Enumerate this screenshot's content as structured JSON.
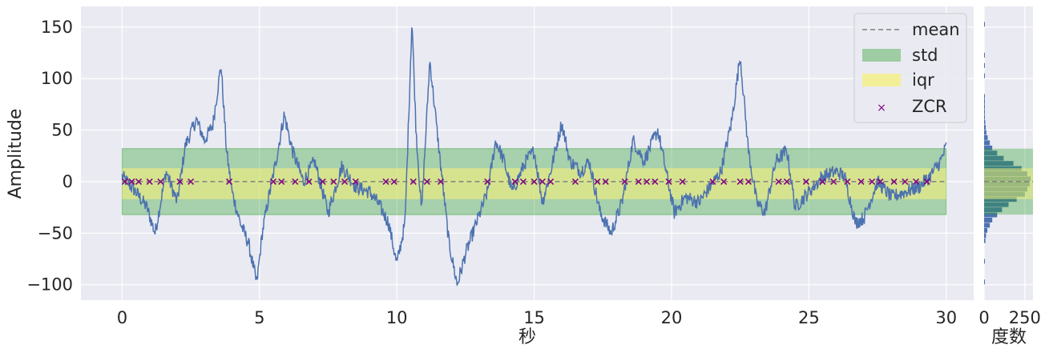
{
  "chart_data": [
    {
      "type": "line",
      "xlabel": "秒",
      "ylabel": "Amplitude",
      "xlim": [
        -1.5,
        31.0
      ],
      "ylim": [
        -115,
        170
      ],
      "xticks": [
        0,
        5,
        10,
        15,
        20,
        25,
        30
      ],
      "xtick_labels": [
        "0",
        "5",
        "10",
        "15",
        "20",
        "25",
        "30"
      ],
      "yticks": [
        -100,
        -50,
        0,
        50,
        100,
        150
      ],
      "ytick_labels": [
        "−100",
        "−50",
        "0",
        "50",
        "100",
        "150"
      ],
      "grid": true,
      "legend_position": "top-right",
      "legend": [
        "mean",
        "std",
        "iqr",
        "ZCR"
      ],
      "mean": 0,
      "std_band": [
        -32,
        32
      ],
      "iqr_band": [
        -17,
        13
      ],
      "x_range": [
        0,
        30
      ],
      "signal_keypoints": [
        [
          0.0,
          5
        ],
        [
          0.5,
          -10
        ],
        [
          0.9,
          -25
        ],
        [
          1.2,
          -50
        ],
        [
          1.6,
          10
        ],
        [
          2.0,
          -20
        ],
        [
          2.3,
          35
        ],
        [
          2.7,
          60
        ],
        [
          3.0,
          40
        ],
        [
          3.3,
          55
        ],
        [
          3.6,
          113
        ],
        [
          3.8,
          30
        ],
        [
          4.0,
          -10
        ],
        [
          4.3,
          -40
        ],
        [
          4.6,
          -60
        ],
        [
          4.9,
          -99
        ],
        [
          5.1,
          -50
        ],
        [
          5.3,
          -20
        ],
        [
          5.6,
          20
        ],
        [
          5.9,
          65
        ],
        [
          6.2,
          30
        ],
        [
          6.6,
          0
        ],
        [
          7.0,
          20
        ],
        [
          7.5,
          -30
        ],
        [
          8.0,
          15
        ],
        [
          8.5,
          -5
        ],
        [
          9.0,
          -10
        ],
        [
          9.3,
          -20
        ],
        [
          9.7,
          -40
        ],
        [
          10.0,
          -80
        ],
        [
          10.3,
          -40
        ],
        [
          10.55,
          157
        ],
        [
          10.7,
          50
        ],
        [
          10.9,
          -30
        ],
        [
          11.2,
          118
        ],
        [
          11.5,
          40
        ],
        [
          11.9,
          -60
        ],
        [
          12.2,
          -100
        ],
        [
          12.5,
          -70
        ],
        [
          12.9,
          -40
        ],
        [
          13.3,
          -10
        ],
        [
          13.6,
          40
        ],
        [
          13.9,
          20
        ],
        [
          14.2,
          -10
        ],
        [
          14.7,
          20
        ],
        [
          15.0,
          30
        ],
        [
          15.3,
          -20
        ],
        [
          15.6,
          10
        ],
        [
          16.0,
          57
        ],
        [
          16.3,
          20
        ],
        [
          16.7,
          10
        ],
        [
          17.0,
          20
        ],
        [
          17.4,
          -30
        ],
        [
          17.8,
          -50
        ],
        [
          18.2,
          -20
        ],
        [
          18.6,
          40
        ],
        [
          19.0,
          20
        ],
        [
          19.5,
          50
        ],
        [
          19.8,
          10
        ],
        [
          20.1,
          -30
        ],
        [
          20.5,
          -15
        ],
        [
          21.0,
          -20
        ],
        [
          21.4,
          -5
        ],
        [
          21.8,
          10
        ],
        [
          22.2,
          60
        ],
        [
          22.5,
          122
        ],
        [
          22.8,
          30
        ],
        [
          23.1,
          -20
        ],
        [
          23.4,
          -30
        ],
        [
          23.8,
          20
        ],
        [
          24.2,
          30
        ],
        [
          24.5,
          -25
        ],
        [
          25.0,
          -10
        ],
        [
          25.5,
          5
        ],
        [
          26.0,
          10
        ],
        [
          26.3,
          5
        ],
        [
          26.7,
          -40
        ],
        [
          27.0,
          -35
        ],
        [
          27.5,
          0
        ],
        [
          28.0,
          -15
        ],
        [
          28.5,
          -10
        ],
        [
          29.0,
          -5
        ],
        [
          29.4,
          5
        ],
        [
          29.8,
          20
        ],
        [
          30.0,
          34
        ]
      ],
      "zcr_x": [
        0.1,
        0.35,
        0.6,
        1.0,
        1.4,
        2.1,
        2.5,
        3.9,
        5.5,
        5.8,
        6.3,
        6.8,
        7.3,
        7.7,
        8.1,
        8.5,
        9.6,
        9.9,
        10.6,
        11.1,
        11.6,
        13.3,
        14.3,
        14.6,
        15.0,
        15.3,
        15.6,
        16.5,
        17.3,
        17.6,
        18.3,
        18.8,
        19.1,
        19.4,
        19.9,
        20.4,
        21.5,
        21.9,
        22.5,
        22.8,
        23.9,
        24.2,
        24.9,
        25.5,
        25.9,
        26.4,
        26.9,
        27.3,
        27.6,
        28.1,
        28.5,
        28.9,
        29.3
      ]
    },
    {
      "type": "bar",
      "orientation": "horizontal",
      "xlabel": "度数",
      "xticks": [
        0,
        250
      ],
      "xtick_labels": [
        "0",
        "250"
      ],
      "xlim": [
        0,
        300
      ],
      "bins": [
        [
          -100,
          -95,
          2
        ],
        [
          -80,
          -75,
          3
        ],
        [
          -60,
          -55,
          8
        ],
        [
          -55,
          -50,
          12
        ],
        [
          -50,
          -45,
          20
        ],
        [
          -45,
          -40,
          35
        ],
        [
          -40,
          -35,
          50
        ],
        [
          -35,
          -30,
          80
        ],
        [
          -30,
          -25,
          110
        ],
        [
          -25,
          -20,
          150
        ],
        [
          -20,
          -15,
          200
        ],
        [
          -15,
          -10,
          250
        ],
        [
          -10,
          -5,
          265
        ],
        [
          -5,
          0,
          280
        ],
        [
          0,
          5,
          285
        ],
        [
          5,
          10,
          265
        ],
        [
          10,
          15,
          230
        ],
        [
          15,
          20,
          180
        ],
        [
          20,
          25,
          120
        ],
        [
          25,
          30,
          80
        ],
        [
          30,
          35,
          50
        ],
        [
          35,
          40,
          35
        ],
        [
          40,
          45,
          22
        ],
        [
          45,
          50,
          14
        ],
        [
          50,
          55,
          10
        ],
        [
          55,
          60,
          7
        ],
        [
          60,
          65,
          5
        ],
        [
          65,
          70,
          4
        ],
        [
          70,
          75,
          3
        ],
        [
          75,
          80,
          3
        ],
        [
          80,
          85,
          2
        ],
        [
          100,
          105,
          2
        ],
        [
          110,
          115,
          2
        ],
        [
          120,
          125,
          2
        ],
        [
          150,
          155,
          1
        ]
      ]
    }
  ]
}
